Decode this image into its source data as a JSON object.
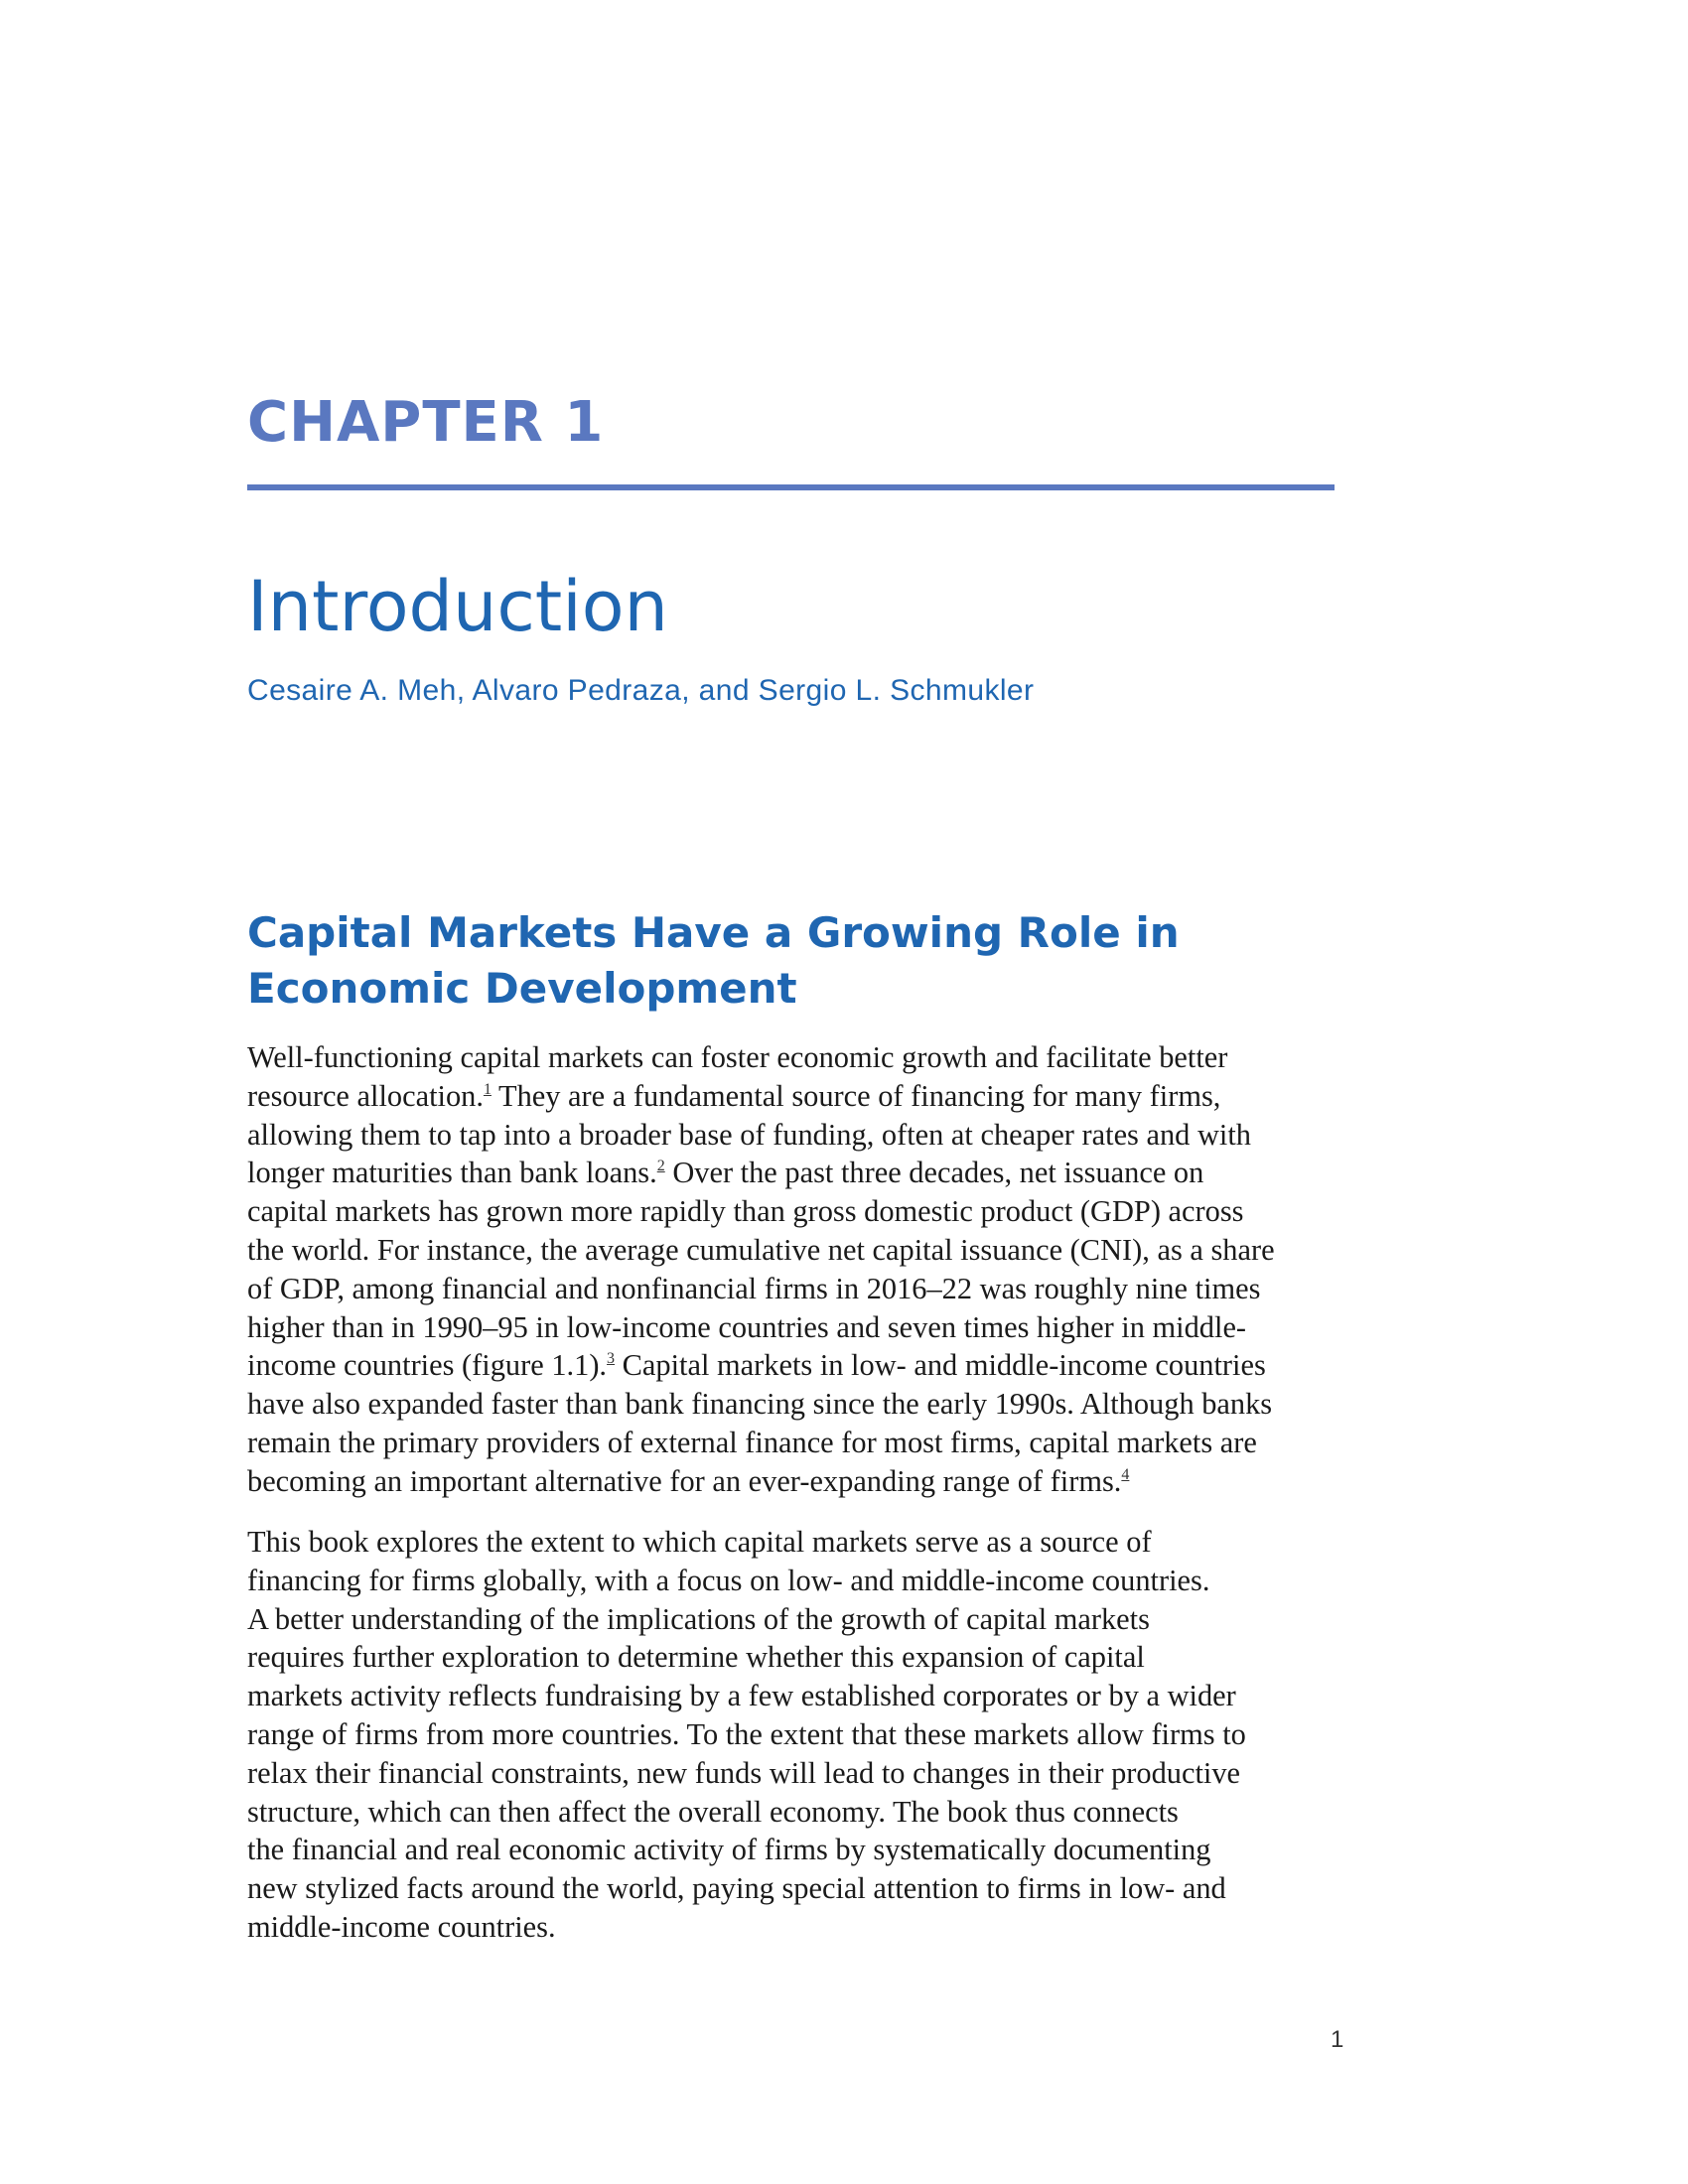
{
  "chapter": {
    "label": "CHAPTER 1",
    "title": "Introduction",
    "authors": "Cesaire A. Meh, Alvaro Pedraza, and Sergio L. Schmukler"
  },
  "section": {
    "heading_lines": [
      "Capital Markets Have a Growing Role in",
      "Economic Development"
    ]
  },
  "paragraph_1": {
    "l1": "Well-functioning capital markets can foster economic growth and facilitate better",
    "l2a": "resource allocation.",
    "fn1": "1",
    "l2b": " They are a fundamental source of financing for many firms,",
    "l3": "allowing them to tap into a broader base of funding, often at cheaper rates and with",
    "l4a": "longer maturities than bank loans.",
    "fn2": "2",
    "l4b": " Over the past three decades, net issuance on",
    "l5": "capital markets has grown more rapidly than gross domestic product (GDP) across",
    "l6": "the world. For instance, the average cumulative net capital issuance (CNI), as a share",
    "l7": "of GDP, among financial and nonfinancial firms in 2016–22 was roughly nine times",
    "l8": "higher than in 1990–95 in low-income countries and seven times higher in middle-",
    "l9a": "income countries (figure 1.1).",
    "fn3": "3",
    "l9b": " Capital markets in low- and middle-income countries",
    "l10": "have also expanded faster than bank financing since the early 1990s. Although banks",
    "l11": "remain the primary providers of external finance for most firms, capital markets are",
    "l12a": "becoming an important alternative for an ever-expanding range of firms.",
    "fn4": "4"
  },
  "paragraph_2": {
    "lines": [
      "This book explores the extent to which capital markets serve as a source of",
      "financing for firms globally, with a focus on low- and middle-income countries.",
      "A better understanding of the implications of the growth of capital markets",
      "requires further exploration to determine whether this expansion of capital",
      "markets activity reflects fundraising by a few established corporates or by a wider",
      "range of firms from more countries. To the extent that these markets allow firms to",
      "relax their financial constraints, new funds will lead to changes in their productive",
      "structure, which can then affect the overall economy. The book thus connects",
      "the financial and real economic activity of firms by systematically documenting",
      "new stylized facts around the world, paying special attention to firms in low- and",
      "middle-income countries."
    ]
  },
  "page_number": "1",
  "colors": {
    "chapter_accent": "#5a78c0",
    "title_blue": "#1f66b1",
    "body_text": "#1a1a1a"
  }
}
